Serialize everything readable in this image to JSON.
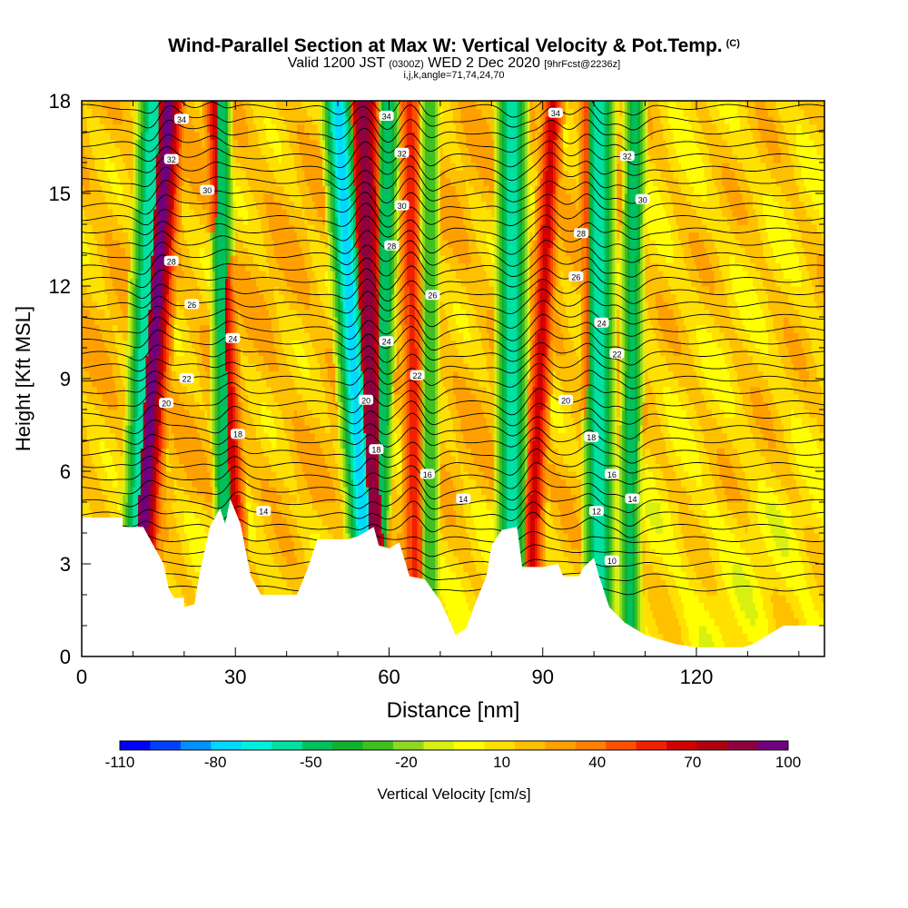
{
  "titles": {
    "main": "Wind-Parallel Section at Max W: Vertical Velocity & Pot.Temp.",
    "main_unit": "(C)",
    "valid_prefix": "Valid 1200 JST",
    "valid_utc": "(0300Z)",
    "valid_date": "WED 2 Dec 2020",
    "forecast": "[9hrFcst@2236z]",
    "indices": "i,j,k,angle=71,74,24,70"
  },
  "chart_data": {
    "type": "heatmap",
    "xlabel": "Distance [nm]",
    "ylabel": "Height [Kft MSL]",
    "xlim": [
      0,
      145
    ],
    "ylim": [
      0,
      18
    ],
    "xticks": [
      0,
      30,
      60,
      90,
      120
    ],
    "yticks": [
      0,
      3,
      6,
      9,
      12,
      15,
      18
    ],
    "colorbar": {
      "label": "Vertical Velocity [cm/s]",
      "ticks": [
        -110,
        -80,
        -50,
        -20,
        10,
        40,
        70,
        100
      ],
      "levels": [
        -110,
        -100,
        -90,
        -80,
        -70,
        -60,
        -50,
        -40,
        -30,
        -20,
        -10,
        0,
        10,
        20,
        30,
        40,
        50,
        60,
        70,
        80,
        90,
        100
      ],
      "colors": [
        "#0000ff",
        "#0040ff",
        "#0090ff",
        "#00d8ff",
        "#00f0e0",
        "#00e0a0",
        "#00c060",
        "#10b030",
        "#40c020",
        "#90d820",
        "#d8f010",
        "#ffff00",
        "#ffe000",
        "#ffc000",
        "#ffa000",
        "#ff8000",
        "#ff5000",
        "#f02000",
        "#d00000",
        "#b00010",
        "#900040",
        "#700080",
        "#4a00a0"
      ]
    },
    "updraft_bands": [
      {
        "x_base": 12,
        "x_top": 17,
        "w": 85
      },
      {
        "x_base": 30,
        "x_top": 26,
        "w": 55
      },
      {
        "x_base": 57,
        "x_top": 55,
        "w": 80
      },
      {
        "x_base": 65,
        "x_top": 64,
        "w": 45
      },
      {
        "x_base": 88,
        "x_top": 92,
        "w": 55
      },
      {
        "x_base": 100,
        "x_top": 99,
        "w": 40
      }
    ],
    "downdraft_bands": [
      {
        "x_base": 11,
        "x_top": 14,
        "w": -70
      },
      {
        "x_base": 28,
        "x_top": 27,
        "w": -60
      },
      {
        "x_base": 55,
        "x_top": 50,
        "w": -85
      },
      {
        "x_base": 58,
        "x_top": 60,
        "w": -60
      },
      {
        "x_base": 68,
        "x_top": 68,
        "w": -40
      },
      {
        "x_base": 84,
        "x_top": 84,
        "w": -70
      },
      {
        "x_base": 101,
        "x_top": 101,
        "w": -65
      },
      {
        "x_base": 107,
        "x_top": 108,
        "w": -55
      }
    ],
    "terrain": [
      [
        0,
        4.5
      ],
      [
        8,
        4.5
      ],
      [
        8,
        4.2
      ],
      [
        12,
        4.2
      ],
      [
        14,
        3.6
      ],
      [
        16,
        3
      ],
      [
        17,
        2.2
      ],
      [
        18,
        1.9
      ],
      [
        20,
        1.9
      ],
      [
        20,
        1.6
      ],
      [
        22,
        1.7
      ],
      [
        23,
        2.7
      ],
      [
        25,
        4.2
      ],
      [
        27,
        4.8
      ],
      [
        28,
        4.3
      ],
      [
        29,
        5.1
      ],
      [
        31,
        4.3
      ],
      [
        33,
        2.6
      ],
      [
        35,
        2
      ],
      [
        42,
        2
      ],
      [
        44,
        2.8
      ],
      [
        46,
        3.8
      ],
      [
        52,
        3.8
      ],
      [
        54,
        3.9
      ],
      [
        57,
        4.2
      ],
      [
        58,
        3.6
      ],
      [
        60,
        3.5
      ],
      [
        62,
        3.7
      ],
      [
        64,
        2.6
      ],
      [
        67,
        2.5
      ],
      [
        70,
        1.8
      ],
      [
        72,
        1.1
      ],
      [
        73,
        0.7
      ],
      [
        75,
        0.9
      ],
      [
        77,
        1.8
      ],
      [
        79,
        2.6
      ],
      [
        80,
        3.6
      ],
      [
        82,
        4.1
      ],
      [
        85,
        4.2
      ],
      [
        86,
        2.9
      ],
      [
        90,
        2.9
      ],
      [
        93,
        3
      ],
      [
        94,
        2.6
      ],
      [
        97,
        2.6
      ],
      [
        98,
        2.9
      ],
      [
        100,
        3.2
      ],
      [
        101,
        2.6
      ],
      [
        103,
        1.6
      ],
      [
        106,
        1.1
      ],
      [
        110,
        0.7
      ],
      [
        112,
        0.6
      ],
      [
        116,
        0.4
      ],
      [
        120,
        0.3
      ],
      [
        126,
        0.3
      ],
      [
        129,
        0.3
      ],
      [
        131,
        0.4
      ],
      [
        135,
        0.8
      ],
      [
        137,
        1
      ],
      [
        145,
        1
      ]
    ],
    "isentrope_labels": [
      {
        "text": "34",
        "x": 19.5,
        "y": 17.4
      },
      {
        "text": "32",
        "x": 17.5,
        "y": 16.1
      },
      {
        "text": "30",
        "x": 24.5,
        "y": 15.1
      },
      {
        "text": "28",
        "x": 17.5,
        "y": 12.8
      },
      {
        "text": "26",
        "x": 21.5,
        "y": 11.4
      },
      {
        "text": "24",
        "x": 29.5,
        "y": 10.3
      },
      {
        "text": "22",
        "x": 20.5,
        "y": 9.0
      },
      {
        "text": "20",
        "x": 16.5,
        "y": 8.2
      },
      {
        "text": "18",
        "x": 30.5,
        "y": 7.2
      },
      {
        "text": "14",
        "x": 35.5,
        "y": 4.7
      },
      {
        "text": "34",
        "x": 59.5,
        "y": 17.5
      },
      {
        "text": "32",
        "x": 62.5,
        "y": 16.3
      },
      {
        "text": "30",
        "x": 62.5,
        "y": 14.6
      },
      {
        "text": "28",
        "x": 60.5,
        "y": 13.3
      },
      {
        "text": "26",
        "x": 68.5,
        "y": 11.7
      },
      {
        "text": "24",
        "x": 59.5,
        "y": 10.2
      },
      {
        "text": "22",
        "x": 65.5,
        "y": 9.1
      },
      {
        "text": "20",
        "x": 55.5,
        "y": 8.3
      },
      {
        "text": "18",
        "x": 57.5,
        "y": 6.7
      },
      {
        "text": "16",
        "x": 67.5,
        "y": 5.9
      },
      {
        "text": "14",
        "x": 74.5,
        "y": 5.1
      },
      {
        "text": "34",
        "x": 92.5,
        "y": 17.6
      },
      {
        "text": "32",
        "x": 106.5,
        "y": 16.2
      },
      {
        "text": "30",
        "x": 109.5,
        "y": 14.8
      },
      {
        "text": "28",
        "x": 97.5,
        "y": 13.7
      },
      {
        "text": "26",
        "x": 96.5,
        "y": 12.3
      },
      {
        "text": "24",
        "x": 101.5,
        "y": 10.8
      },
      {
        "text": "22",
        "x": 104.5,
        "y": 9.8
      },
      {
        "text": "20",
        "x": 94.5,
        "y": 8.3
      },
      {
        "text": "18",
        "x": 99.5,
        "y": 7.1
      },
      {
        "text": "16",
        "x": 103.5,
        "y": 5.9
      },
      {
        "text": "14",
        "x": 107.5,
        "y": 5.1
      },
      {
        "text": "12",
        "x": 100.5,
        "y": 4.7
      },
      {
        "text": "10",
        "x": 103.5,
        "y": 3.1
      }
    ]
  }
}
